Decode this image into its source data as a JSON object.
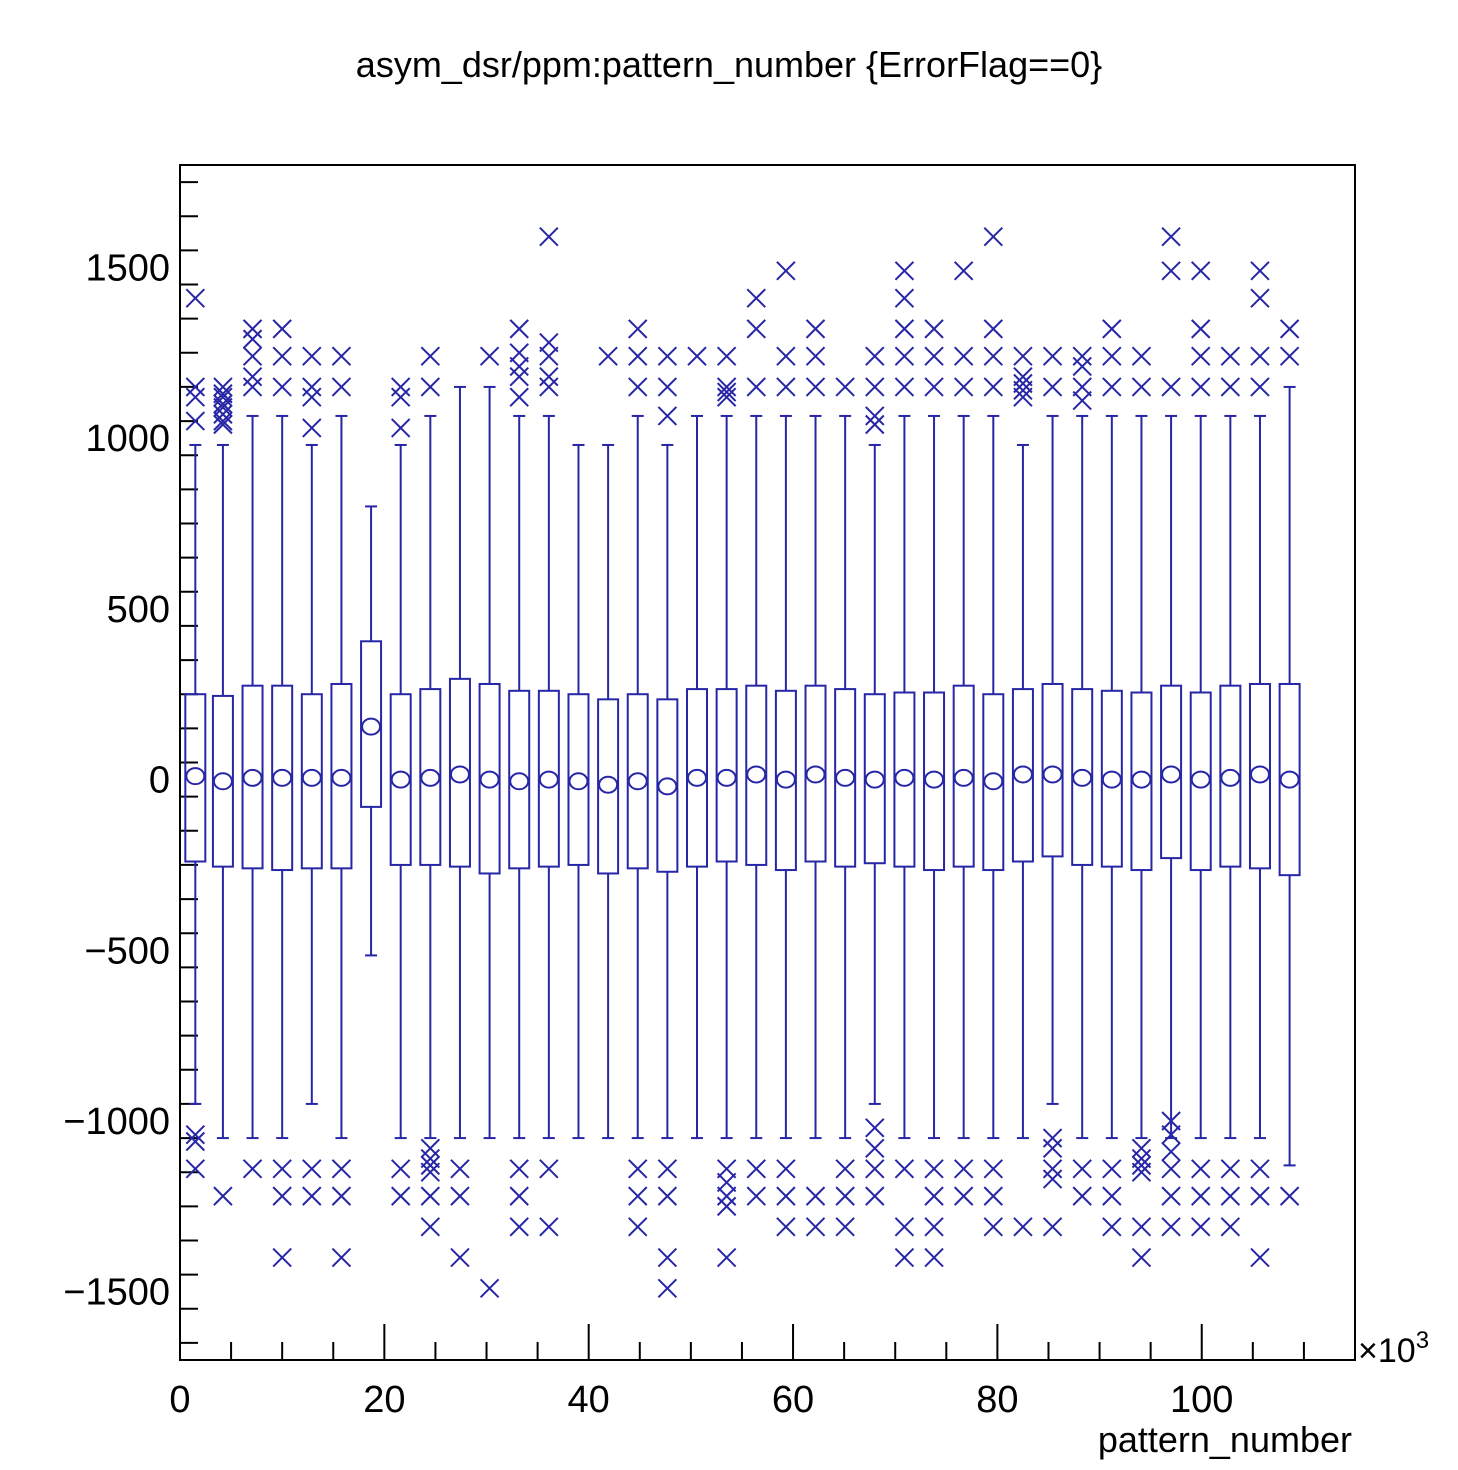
{
  "chart_data": {
    "type": "box",
    "title": "asym_dsr/ppm:pattern_number {ErrorFlag==0}",
    "xlabel": "pattern_number",
    "ylabel": "",
    "x_multiplier": "×10",
    "x_multiplier_exp": "3",
    "xlim": [
      0,
      115
    ],
    "ylim": [
      -1700,
      1800
    ],
    "xticks": [
      0,
      20,
      40,
      60,
      80,
      100
    ],
    "yticks": [
      -1500,
      -1000,
      -500,
      0,
      500,
      1000,
      1500
    ],
    "xtick_labels": [
      "0",
      "20",
      "40",
      "60",
      "80",
      "100"
    ],
    "ytick_labels": [
      "−1500",
      "−1000",
      "−500",
      "0",
      "500",
      "1000",
      "1500"
    ],
    "color": "#2626a6",
    "grid": false,
    "boxes": [
      {
        "x": 1.5,
        "q1": -240,
        "q3": 250,
        "mean": 10,
        "wlo": -950,
        "whi": 980,
        "outliers": [
          1410,
          1150,
          1120,
          1050,
          -1040,
          -1060,
          -1140
        ]
      },
      {
        "x": 4.2,
        "q1": -255,
        "q3": 245,
        "mean": -5,
        "wlo": -1050,
        "whi": 980,
        "outliers": [
          1150,
          1130,
          1120,
          1100,
          1090,
          1070,
          1050,
          1040,
          -1220
        ]
      },
      {
        "x": 7.1,
        "q1": -260,
        "q3": 275,
        "mean": 5,
        "wlo": -1050,
        "whi": 1065,
        "outliers": [
          1320,
          1290,
          1240,
          1180,
          1150,
          -1140
        ]
      },
      {
        "x": 10.0,
        "q1": -265,
        "q3": 275,
        "mean": 5,
        "wlo": -1050,
        "whi": 1065,
        "outliers": [
          1320,
          1240,
          1150,
          -1140,
          -1220,
          -1400
        ]
      },
      {
        "x": 12.9,
        "q1": -260,
        "q3": 250,
        "mean": 5,
        "wlo": -950,
        "whi": 980,
        "outliers": [
          1240,
          1150,
          1120,
          1030,
          -1140,
          -1220
        ]
      },
      {
        "x": 15.8,
        "q1": -260,
        "q3": 280,
        "mean": 5,
        "wlo": -1050,
        "whi": 1065,
        "outliers": [
          1240,
          1150,
          -1140,
          -1220,
          -1400
        ]
      },
      {
        "x": 18.7,
        "q1": -80,
        "q3": 405,
        "mean": 155,
        "wlo": -515,
        "whi": 800,
        "outliers": []
      },
      {
        "x": 21.6,
        "q1": -250,
        "q3": 250,
        "mean": 0,
        "wlo": -1050,
        "whi": 980,
        "outliers": [
          1150,
          1120,
          1030,
          -1140,
          -1220
        ]
      },
      {
        "x": 24.5,
        "q1": -250,
        "q3": 265,
        "mean": 5,
        "wlo": -1050,
        "whi": 1065,
        "outliers": [
          1240,
          1150,
          -1080,
          -1110,
          -1130,
          -1150,
          -1220,
          -1310
        ]
      },
      {
        "x": 27.4,
        "q1": -255,
        "q3": 295,
        "mean": 15,
        "wlo": -1050,
        "whi": 1150,
        "outliers": [
          -1140,
          -1220,
          -1400
        ]
      },
      {
        "x": 30.3,
        "q1": -275,
        "q3": 280,
        "mean": 0,
        "wlo": -1050,
        "whi": 1150,
        "outliers": [
          1240,
          -1490
        ]
      },
      {
        "x": 33.2,
        "q1": -260,
        "q3": 260,
        "mean": -5,
        "wlo": -1050,
        "whi": 1065,
        "outliers": [
          1320,
          1250,
          1210,
          1180,
          1120,
          -1140,
          -1220,
          -1310
        ]
      },
      {
        "x": 36.1,
        "q1": -255,
        "q3": 260,
        "mean": 0,
        "wlo": -1050,
        "whi": 1065,
        "outliers": [
          1590,
          1280,
          1240,
          1180,
          1150,
          -1140,
          -1310
        ]
      },
      {
        "x": 39.0,
        "q1": -250,
        "q3": 250,
        "mean": -5,
        "wlo": -1050,
        "whi": 980,
        "outliers": []
      },
      {
        "x": 41.9,
        "q1": -275,
        "q3": 235,
        "mean": -15,
        "wlo": -1050,
        "whi": 980,
        "outliers": [
          1240
        ]
      },
      {
        "x": 44.8,
        "q1": -260,
        "q3": 250,
        "mean": -5,
        "wlo": -1050,
        "whi": 1065,
        "outliers": [
          1320,
          1240,
          1150,
          -1140,
          -1220,
          -1310
        ]
      },
      {
        "x": 47.7,
        "q1": -270,
        "q3": 235,
        "mean": -20,
        "wlo": -1050,
        "whi": 980,
        "outliers": [
          1240,
          1150,
          1065,
          -1140,
          -1220,
          -1400,
          -1490
        ]
      },
      {
        "x": 50.6,
        "q1": -255,
        "q3": 265,
        "mean": 5,
        "wlo": -1050,
        "whi": 1065,
        "outliers": [
          1240
        ]
      },
      {
        "x": 53.5,
        "q1": -240,
        "q3": 265,
        "mean": 5,
        "wlo": -1050,
        "whi": 1065,
        "outliers": [
          1240,
          1150,
          1135,
          1120,
          -1140,
          -1180,
          -1220,
          -1250,
          -1400
        ]
      },
      {
        "x": 56.4,
        "q1": -250,
        "q3": 275,
        "mean": 15,
        "wlo": -1050,
        "whi": 1065,
        "outliers": [
          1410,
          1320,
          1150,
          -1140,
          -1220
        ]
      },
      {
        "x": 59.3,
        "q1": -265,
        "q3": 260,
        "mean": 0,
        "wlo": -1050,
        "whi": 1065,
        "outliers": [
          1490,
          1240,
          1150,
          -1140,
          -1220,
          -1310
        ]
      },
      {
        "x": 62.2,
        "q1": -240,
        "q3": 275,
        "mean": 15,
        "wlo": -1050,
        "whi": 1065,
        "outliers": [
          1320,
          1240,
          1150,
          -1220,
          -1310
        ]
      },
      {
        "x": 65.1,
        "q1": -255,
        "q3": 265,
        "mean": 5,
        "wlo": -1050,
        "whi": 1065,
        "outliers": [
          1150,
          -1140,
          -1220,
          -1310
        ]
      },
      {
        "x": 68.0,
        "q1": -245,
        "q3": 250,
        "mean": 0,
        "wlo": -950,
        "whi": 980,
        "outliers": [
          1240,
          1150,
          1065,
          1040,
          -1020,
          -1080,
          -1140,
          -1220
        ]
      },
      {
        "x": 70.9,
        "q1": -255,
        "q3": 255,
        "mean": 5,
        "wlo": -1050,
        "whi": 1065,
        "outliers": [
          1490,
          1410,
          1320,
          1240,
          1150,
          -1140,
          -1310,
          -1400
        ]
      },
      {
        "x": 73.8,
        "q1": -265,
        "q3": 255,
        "mean": 0,
        "wlo": -1050,
        "whi": 1065,
        "outliers": [
          1320,
          1240,
          1150,
          -1140,
          -1220,
          -1310,
          -1400
        ]
      },
      {
        "x": 76.7,
        "q1": -255,
        "q3": 275,
        "mean": 5,
        "wlo": -1050,
        "whi": 1065,
        "outliers": [
          1490,
          1240,
          1150,
          -1140,
          -1220
        ]
      },
      {
        "x": 79.6,
        "q1": -265,
        "q3": 250,
        "mean": -5,
        "wlo": -1050,
        "whi": 1065,
        "outliers": [
          1590,
          1320,
          1240,
          1150,
          -1140,
          -1220,
          -1310
        ]
      },
      {
        "x": 82.5,
        "q1": -240,
        "q3": 265,
        "mean": 15,
        "wlo": -1050,
        "whi": 980,
        "outliers": [
          1240,
          1180,
          1160,
          1140,
          1120,
          -1310
        ]
      },
      {
        "x": 85.4,
        "q1": -225,
        "q3": 280,
        "mean": 15,
        "wlo": -950,
        "whi": 1065,
        "outliers": [
          1240,
          1150,
          -1050,
          -1080,
          -1140,
          -1170,
          -1310
        ]
      },
      {
        "x": 88.3,
        "q1": -250,
        "q3": 265,
        "mean": 5,
        "wlo": -1050,
        "whi": 1065,
        "outliers": [
          1240,
          1210,
          1150,
          1110,
          -1140,
          -1220
        ]
      },
      {
        "x": 91.2,
        "q1": -255,
        "q3": 260,
        "mean": 0,
        "wlo": -1050,
        "whi": 1065,
        "outliers": [
          1320,
          1240,
          1150,
          -1140,
          -1220,
          -1310
        ]
      },
      {
        "x": 94.1,
        "q1": -265,
        "q3": 255,
        "mean": 0,
        "wlo": -1050,
        "whi": 1065,
        "outliers": [
          1240,
          1150,
          -1080,
          -1110,
          -1130,
          -1150,
          -1310,
          -1400
        ]
      },
      {
        "x": 97.0,
        "q1": -230,
        "q3": 275,
        "mean": 15,
        "wlo": -1050,
        "whi": 1065,
        "outliers": [
          1590,
          1490,
          1150,
          -1000,
          -1040,
          -1090,
          -1140,
          -1220,
          -1310
        ]
      },
      {
        "x": 99.9,
        "q1": -265,
        "q3": 255,
        "mean": 0,
        "wlo": -1050,
        "whi": 1065,
        "outliers": [
          1490,
          1320,
          1240,
          1150,
          -1140,
          -1220,
          -1310
        ]
      },
      {
        "x": 102.8,
        "q1": -255,
        "q3": 275,
        "mean": 5,
        "wlo": -1050,
        "whi": 1065,
        "outliers": [
          1240,
          1150,
          -1140,
          -1220,
          -1310
        ]
      },
      {
        "x": 105.7,
        "q1": -260,
        "q3": 280,
        "mean": 15,
        "wlo": -1050,
        "whi": 1065,
        "outliers": [
          1490,
          1410,
          1240,
          1150,
          -1140,
          -1220,
          -1400
        ]
      },
      {
        "x": 108.6,
        "q1": -280,
        "q3": 280,
        "mean": 0,
        "wlo": -1130,
        "whi": 1150,
        "outliers": [
          1320,
          1240,
          -1220
        ]
      }
    ]
  }
}
